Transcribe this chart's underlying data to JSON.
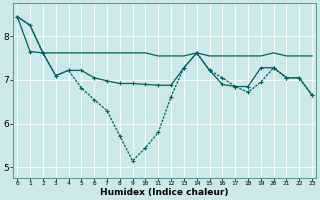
{
  "x": [
    0,
    1,
    2,
    3,
    4,
    5,
    6,
    7,
    8,
    9,
    10,
    11,
    12,
    13,
    14,
    15,
    16,
    17,
    18,
    19,
    20,
    21,
    22,
    23
  ],
  "line_top": [
    8.45,
    8.25,
    7.62,
    7.62,
    7.62,
    7.62,
    7.62,
    7.62,
    7.62,
    7.62,
    7.62,
    7.55,
    7.55,
    7.55,
    7.62,
    7.55,
    7.55,
    7.55,
    7.55,
    7.55,
    7.62,
    7.55,
    7.55,
    7.55
  ],
  "line_mid": [
    8.45,
    7.65,
    7.62,
    7.1,
    7.22,
    7.22,
    7.05,
    6.98,
    6.92,
    6.92,
    6.9,
    6.88,
    6.88,
    7.28,
    7.62,
    7.22,
    6.9,
    6.85,
    6.85,
    7.28,
    7.28,
    7.05,
    7.05,
    6.65
  ],
  "line_bot": [
    8.45,
    8.25,
    7.62,
    7.1,
    7.22,
    6.82,
    6.55,
    6.3,
    5.72,
    5.15,
    5.45,
    5.8,
    6.62,
    7.28,
    7.62,
    7.22,
    7.05,
    6.85,
    6.72,
    6.95,
    7.28,
    7.05,
    7.05,
    6.65
  ],
  "bg_color": "#cde8e8",
  "grid_color": "#b8d8d8",
  "line_color": "#006060",
  "ylim": [
    4.75,
    8.75
  ],
  "yticks": [
    5,
    6,
    7,
    8
  ],
  "xlim": [
    -0.3,
    23.3
  ],
  "xlabel": "Humidex (Indice chaleur)"
}
